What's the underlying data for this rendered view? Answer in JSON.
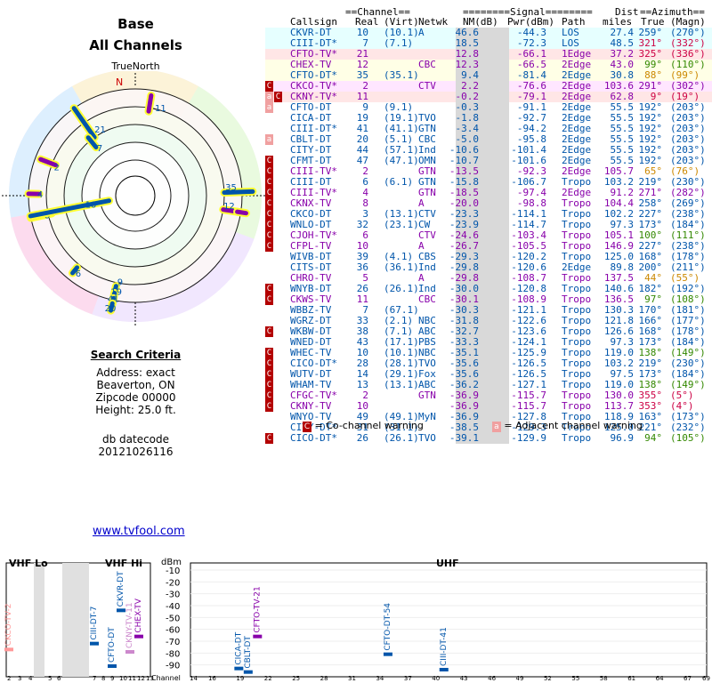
{
  "title": "Base",
  "subtitle": "All Channels",
  "true_north_label": "TrueNorth",
  "north_label": "N",
  "search": {
    "heading": "Search Criteria",
    "lines": [
      "Address: exact",
      "Beaverton, ON",
      "Zipcode 00000",
      "Height: 25.0 ft."
    ]
  },
  "db": {
    "label": "db datecode",
    "value": "20121026116"
  },
  "site_link": "www.tvfool.com",
  "table_headers": {
    "channel_group": "==Channel==",
    "signal_group": "========Signal========",
    "dist_group": "Dist",
    "az_group": "==Azimuth==",
    "callsign": "Callsign",
    "real": "Real",
    "virt": "(Virt)",
    "netwk": "Netwk",
    "nm": "NM(dB)",
    "pwr": "Pwr(dBm)",
    "path": "Path",
    "miles": "miles",
    "true": "True",
    "magn": "(Magn)"
  },
  "legend": {
    "co": "= Co-channel warning",
    "adj": "= Adjacent channel warning",
    "co_mark": "C",
    "adj_mark": "a"
  },
  "colors": {
    "blue": "#0055aa",
    "purple": "#8800aa",
    "red": "#cc0044",
    "green": "#338800",
    "orange": "#cc8800"
  },
  "stations": [
    {
      "w": "",
      "callsign": "CKVR-DT",
      "real": "10",
      "virt": "(10.1)",
      "netwk": "A",
      "nm": "46.6",
      "pwr": "-44.3",
      "path": "LOS",
      "dist": "27.4",
      "true": "259°",
      "magn": "(270°)",
      "color": "blue",
      "bg": "#e6ffff"
    },
    {
      "w": "",
      "callsign": "CIII-DT*",
      "real": "7",
      "virt": "(7.1)",
      "netwk": "",
      "nm": "18.5",
      "pwr": "-72.3",
      "path": "LOS",
      "dist": "48.5",
      "true": "321°",
      "magn": "(332°)",
      "color": "blue",
      "bg": "#e6ffff"
    },
    {
      "w": "",
      "callsign": "CFTO-TV*",
      "real": "21",
      "virt": "",
      "netwk": "",
      "nm": "12.8",
      "pwr": "-66.1",
      "path": "1Edge",
      "dist": "37.2",
      "true": "325°",
      "magn": "(336°)",
      "color": "purple",
      "bg": "#ffe6e6"
    },
    {
      "w": "",
      "callsign": "CHEX-TV",
      "real": "12",
      "virt": "",
      "netwk": "CBC",
      "nm": "12.3",
      "pwr": "-66.5",
      "path": "2Edge",
      "dist": "43.0",
      "true": "99°",
      "magn": "(110°)",
      "color": "purple",
      "bg": "#ffffe6"
    },
    {
      "w": "",
      "callsign": "CFTO-DT*",
      "real": "35",
      "virt": "(35.1)",
      "netwk": "",
      "nm": "9.4",
      "pwr": "-81.4",
      "path": "2Edge",
      "dist": "30.8",
      "true": "88°",
      "magn": "(99°)",
      "color": "blue",
      "bg": "#ffffe6"
    },
    {
      "w": "C",
      "callsign": "CKCO-TV*",
      "real": "2",
      "virt": "",
      "netwk": "CTV",
      "nm": "2.2",
      "pwr": "-76.6",
      "path": "2Edge",
      "dist": "103.6",
      "true": "291°",
      "magn": "(302°)",
      "color": "purple",
      "bg": "#ffe6ff"
    },
    {
      "w": "aC",
      "callsign": "CKNY-TV*",
      "real": "11",
      "virt": "",
      "netwk": "",
      "nm": "-0.2",
      "pwr": "-79.1",
      "path": "2Edge",
      "dist": "62.8",
      "true": "9°",
      "magn": "(19°)",
      "color": "purple",
      "bg": "#ffe6e6"
    },
    {
      "w": "a",
      "callsign": "CFTO-DT",
      "real": "9",
      "virt": "(9.1)",
      "netwk": "",
      "nm": "-0.3",
      "pwr": "-91.1",
      "path": "2Edge",
      "dist": "55.5",
      "true": "192°",
      "magn": "(203°)",
      "color": "blue",
      "bg": "#ffffff"
    },
    {
      "w": "",
      "callsign": "CICA-DT",
      "real": "19",
      "virt": "(19.1)",
      "netwk": "TVO",
      "nm": "-1.8",
      "pwr": "-92.7",
      "path": "2Edge",
      "dist": "55.5",
      "true": "192°",
      "magn": "(203°)",
      "color": "blue",
      "bg": "#ffffff"
    },
    {
      "w": "",
      "callsign": "CIII-DT*",
      "real": "41",
      "virt": "(41.1)",
      "netwk": "GTN",
      "nm": "-3.4",
      "pwr": "-94.2",
      "path": "2Edge",
      "dist": "55.5",
      "true": "192°",
      "magn": "(203°)",
      "color": "blue",
      "bg": "#ffffff"
    },
    {
      "w": "a",
      "callsign": "CBLT-DT",
      "real": "20",
      "virt": "(5.1)",
      "netwk": "CBC",
      "nm": "-5.0",
      "pwr": "-95.8",
      "path": "2Edge",
      "dist": "55.5",
      "true": "192°",
      "magn": "(203°)",
      "color": "blue",
      "bg": "#ffffff"
    },
    {
      "w": "",
      "callsign": "CITY-DT",
      "real": "44",
      "virt": "(57.1)",
      "netwk": "Ind",
      "nm": "-10.6",
      "pwr": "-101.4",
      "path": "2Edge",
      "dist": "55.5",
      "true": "192°",
      "magn": "(203°)",
      "color": "blue",
      "bg": "#ffffff"
    },
    {
      "w": "C",
      "callsign": "CFMT-DT",
      "real": "47",
      "virt": "(47.1)",
      "netwk": "OMN",
      "nm": "-10.7",
      "pwr": "-101.6",
      "path": "2Edge",
      "dist": "55.5",
      "true": "192°",
      "magn": "(203°)",
      "color": "blue",
      "bg": "#ffffff"
    },
    {
      "w": "C",
      "callsign": "CIII-TV*",
      "real": "2",
      "virt": "",
      "netwk": "GTN",
      "nm": "-13.5",
      "pwr": "-92.3",
      "path": "2Edge",
      "dist": "105.7",
      "true": "65°",
      "magn": "(76°)",
      "color": "purple",
      "bg": "#ffffff"
    },
    {
      "w": "C",
      "callsign": "CIII-DT",
      "real": "6",
      "virt": "(6.1)",
      "netwk": "GTN",
      "nm": "-15.8",
      "pwr": "-106.7",
      "path": "Tropo",
      "dist": "103.2",
      "true": "219°",
      "magn": "(230°)",
      "color": "blue",
      "bg": "#ffffff"
    },
    {
      "w": "C",
      "callsign": "CIII-TV*",
      "real": "4",
      "virt": "",
      "netwk": "GTN",
      "nm": "-18.5",
      "pwr": "-97.4",
      "path": "2Edge",
      "dist": "91.2",
      "true": "271°",
      "magn": "(282°)",
      "color": "purple",
      "bg": "#ffffff"
    },
    {
      "w": "C",
      "callsign": "CKNX-TV",
      "real": "8",
      "virt": "",
      "netwk": "A",
      "nm": "-20.0",
      "pwr": "-98.8",
      "path": "Tropo",
      "dist": "104.4",
      "true": "258°",
      "magn": "(269°)",
      "color": "purple",
      "bg": "#ffffff"
    },
    {
      "w": "C",
      "callsign": "CKCO-DT",
      "real": "3",
      "virt": "(13.1)",
      "netwk": "CTV",
      "nm": "-23.3",
      "pwr": "-114.1",
      "path": "Tropo",
      "dist": "102.2",
      "true": "227°",
      "magn": "(238°)",
      "color": "blue",
      "bg": "#ffffff"
    },
    {
      "w": "C",
      "callsign": "WNLO-DT",
      "real": "32",
      "virt": "(23.1)",
      "netwk": "CW",
      "nm": "-23.9",
      "pwr": "-114.7",
      "path": "Tropo",
      "dist": "97.3",
      "true": "173°",
      "magn": "(184°)",
      "color": "blue",
      "bg": "#ffffff"
    },
    {
      "w": "C",
      "callsign": "CJOH-TV*",
      "real": "6",
      "virt": "",
      "netwk": "CTV",
      "nm": "-24.6",
      "pwr": "-103.4",
      "path": "Tropo",
      "dist": "105.1",
      "true": "100°",
      "magn": "(111°)",
      "color": "purple",
      "bg": "#ffffff"
    },
    {
      "w": "C",
      "callsign": "CFPL-TV",
      "real": "10",
      "virt": "",
      "netwk": "A",
      "nm": "-26.7",
      "pwr": "-105.5",
      "path": "Tropo",
      "dist": "146.9",
      "true": "227°",
      "magn": "(238°)",
      "color": "purple",
      "bg": "#ffffff"
    },
    {
      "w": "",
      "callsign": "WIVB-DT",
      "real": "39",
      "virt": "(4.1)",
      "netwk": "CBS",
      "nm": "-29.3",
      "pwr": "-120.2",
      "path": "Tropo",
      "dist": "125.0",
      "true": "168°",
      "magn": "(178°)",
      "color": "blue",
      "bg": "#ffffff"
    },
    {
      "w": "",
      "callsign": "CITS-DT",
      "real": "36",
      "virt": "(36.1)",
      "netwk": "Ind",
      "nm": "-29.8",
      "pwr": "-120.6",
      "path": "2Edge",
      "dist": "89.8",
      "true": "200°",
      "magn": "(211°)",
      "color": "blue",
      "bg": "#ffffff"
    },
    {
      "w": "",
      "callsign": "CHRO-TV",
      "real": "5",
      "virt": "",
      "netwk": "A",
      "nm": "-29.8",
      "pwr": "-108.7",
      "path": "Tropo",
      "dist": "137.5",
      "true": "44°",
      "magn": "(55°)",
      "color": "purple",
      "bg": "#ffffff"
    },
    {
      "w": "C",
      "callsign": "WNYB-DT",
      "real": "26",
      "virt": "(26.1)",
      "netwk": "Ind",
      "nm": "-30.0",
      "pwr": "-120.8",
      "path": "Tropo",
      "dist": "140.6",
      "true": "182°",
      "magn": "(192°)",
      "color": "blue",
      "bg": "#ffffff"
    },
    {
      "w": "C",
      "callsign": "CKWS-TV",
      "real": "11",
      "virt": "",
      "netwk": "CBC",
      "nm": "-30.1",
      "pwr": "-108.9",
      "path": "Tropo",
      "dist": "136.5",
      "true": "97°",
      "magn": "(108°)",
      "color": "purple",
      "bg": "#ffffff"
    },
    {
      "w": "",
      "callsign": "WBBZ-TV",
      "real": "7",
      "virt": "(67.1)",
      "netwk": "",
      "nm": "-30.3",
      "pwr": "-121.1",
      "path": "Tropo",
      "dist": "130.3",
      "true": "170°",
      "magn": "(181°)",
      "color": "blue",
      "bg": "#ffffff"
    },
    {
      "w": "",
      "callsign": "WGRZ-DT",
      "real": "33",
      "virt": "(2.1)",
      "netwk": "NBC",
      "nm": "-31.8",
      "pwr": "-122.6",
      "path": "Tropo",
      "dist": "121.8",
      "true": "166°",
      "magn": "(177°)",
      "color": "blue",
      "bg": "#ffffff"
    },
    {
      "w": "C",
      "callsign": "WKBW-DT",
      "real": "38",
      "virt": "(7.1)",
      "netwk": "ABC",
      "nm": "-32.7",
      "pwr": "-123.6",
      "path": "Tropo",
      "dist": "126.6",
      "true": "168°",
      "magn": "(178°)",
      "color": "blue",
      "bg": "#ffffff"
    },
    {
      "w": "",
      "callsign": "WNED-DT",
      "real": "43",
      "virt": "(17.1)",
      "netwk": "PBS",
      "nm": "-33.3",
      "pwr": "-124.1",
      "path": "Tropo",
      "dist": "97.3",
      "true": "173°",
      "magn": "(184°)",
      "color": "blue",
      "bg": "#ffffff"
    },
    {
      "w": "C",
      "callsign": "WHEC-TV",
      "real": "10",
      "virt": "(10.1)",
      "netwk": "NBC",
      "nm": "-35.1",
      "pwr": "-125.9",
      "path": "Tropo",
      "dist": "119.0",
      "true": "138°",
      "magn": "(149°)",
      "color": "blue",
      "bg": "#ffffff"
    },
    {
      "w": "C",
      "callsign": "CICO-DT*",
      "real": "28",
      "virt": "(28.1)",
      "netwk": "TVO",
      "nm": "-35.6",
      "pwr": "-126.5",
      "path": "Tropo",
      "dist": "103.2",
      "true": "219°",
      "magn": "(230°)",
      "color": "blue",
      "bg": "#ffffff"
    },
    {
      "w": "C",
      "callsign": "WUTV-DT",
      "real": "14",
      "virt": "(29.1)",
      "netwk": "Fox",
      "nm": "-35.6",
      "pwr": "-126.5",
      "path": "Tropo",
      "dist": "97.5",
      "true": "173°",
      "magn": "(184°)",
      "color": "blue",
      "bg": "#ffffff"
    },
    {
      "w": "C",
      "callsign": "WHAM-TV",
      "real": "13",
      "virt": "(13.1)",
      "netwk": "ABC",
      "nm": "-36.2",
      "pwr": "-127.1",
      "path": "Tropo",
      "dist": "119.0",
      "true": "138°",
      "magn": "(149°)",
      "color": "blue",
      "bg": "#ffffff"
    },
    {
      "w": "C",
      "callsign": "CFGC-TV*",
      "real": "2",
      "virt": "",
      "netwk": "GTN",
      "nm": "-36.9",
      "pwr": "-115.7",
      "path": "Tropo",
      "dist": "130.0",
      "true": "355°",
      "magn": "(5°)",
      "color": "purple",
      "bg": "#ffffff"
    },
    {
      "w": "C",
      "callsign": "CKNY-TV",
      "real": "10",
      "virt": "",
      "netwk": "",
      "nm": "-36.9",
      "pwr": "-115.7",
      "path": "Tropo",
      "dist": "113.7",
      "true": "353°",
      "magn": "(4°)",
      "color": "purple",
      "bg": "#ffffff"
    },
    {
      "w": "",
      "callsign": "WNYO-TV",
      "real": "49",
      "virt": "(49.1)",
      "netwk": "MyN",
      "nm": "-36.9",
      "pwr": "-127.8",
      "path": "Tropo",
      "dist": "118.9",
      "true": "163°",
      "magn": "(173°)",
      "color": "blue",
      "bg": "#ffffff"
    },
    {
      "w": "",
      "callsign": "CITY-DT*",
      "real": "31",
      "virt": "(31.1)",
      "netwk": "",
      "nm": "-38.5",
      "pwr": "-129.3",
      "path": "Tropo",
      "dist": "125.0",
      "true": "221°",
      "magn": "(232°)",
      "color": "blue",
      "bg": "#ffffff"
    },
    {
      "w": "C",
      "callsign": "CICO-DT*",
      "real": "26",
      "virt": "(26.1)",
      "netwk": "TVO",
      "nm": "-39.1",
      "pwr": "-129.9",
      "path": "Tropo",
      "dist": "96.9",
      "true": "94°",
      "magn": "(105°)",
      "color": "blue",
      "bg": "#ffffff"
    }
  ],
  "polar_labels": [
    "11",
    "21",
    "7",
    "2",
    "4",
    "8",
    "10",
    "35",
    "12",
    "6",
    "9",
    "19",
    "41",
    "20"
  ],
  "spectrum": {
    "vhf_lo_label": "VHF Lo",
    "vhf_hi_label": "VHF Hi",
    "uhf_label": "UHF",
    "dbm_label": "dBm",
    "y_ticks": [
      "-10",
      "-20",
      "-30",
      "-40",
      "-50",
      "-60",
      "-70",
      "-80",
      "-90"
    ],
    "channel_label": "Channel",
    "vhf_lo_channels": [
      "2",
      "3",
      "4",
      "5",
      "6"
    ],
    "vhf_hi_channels": [
      "7",
      "8",
      "9",
      "10",
      "11",
      "12",
      "13"
    ],
    "uhf_channels": [
      "14",
      "16",
      "19",
      "22",
      "25",
      "28",
      "31",
      "34",
      "37",
      "40",
      "43",
      "46",
      "49",
      "52",
      "55",
      "58",
      "61",
      "64",
      "67",
      "69"
    ],
    "bars": [
      {
        "label": "CKCO-TV-2",
        "channel": "2",
        "dbm": -77,
        "color": "#ff9999"
      },
      {
        "label": "CIII-DT-7",
        "channel": "7",
        "dbm": -72,
        "color": "#0055aa"
      },
      {
        "label": "CFTO-DT",
        "channel": "9",
        "dbm": -91,
        "color": "#0055aa"
      },
      {
        "label": "CKVR-DT",
        "channel": "10",
        "dbm": -44,
        "color": "#0055aa"
      },
      {
        "label": "CKNY-TV-11",
        "channel": "11",
        "dbm": -79,
        "color": "#cc88cc"
      },
      {
        "label": "CHEX-TV",
        "channel": "12",
        "dbm": -66,
        "color": "#8800aa"
      },
      {
        "label": "CICA-DT",
        "channel": "19",
        "dbm": -93,
        "color": "#0055aa"
      },
      {
        "label": "CBLT-DT",
        "channel": "20",
        "dbm": -96,
        "color": "#0055aa"
      },
      {
        "label": "CFTO-TV-21",
        "channel": "21",
        "dbm": -66,
        "color": "#8800aa"
      },
      {
        "label": "CFTO-DT-54",
        "channel": "35",
        "dbm": -81,
        "color": "#0055aa"
      },
      {
        "label": "CIII-DT-41",
        "channel": "41",
        "dbm": -94,
        "color": "#0055aa"
      }
    ]
  }
}
